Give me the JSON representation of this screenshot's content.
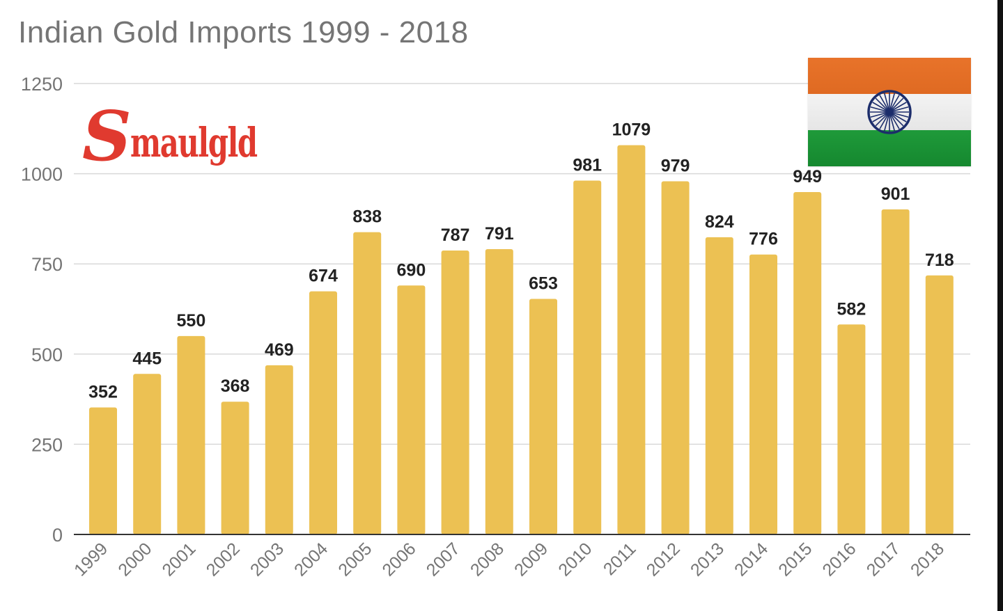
{
  "title": "Indian Gold Imports 1999 - 2018",
  "logo": {
    "initial": "S",
    "rest": "maulgld",
    "color": "#e03a2f"
  },
  "flag": {
    "name": "india-flag",
    "colors": {
      "saffron": "#e8732a",
      "white": "#eeeeee",
      "green": "#1f9a3a",
      "chakra": "#1c2d6b"
    }
  },
  "chart_data": {
    "type": "bar",
    "title": "Indian Gold Imports 1999 - 2018",
    "xlabel": "",
    "ylabel": "",
    "categories": [
      "1999",
      "2000",
      "2001",
      "2002",
      "2003",
      "2004",
      "2005",
      "2006",
      "2007",
      "2008",
      "2009",
      "2010",
      "2011",
      "2012",
      "2013",
      "2014",
      "2015",
      "2016",
      "2017",
      "2018"
    ],
    "values": [
      352,
      445,
      550,
      368,
      469,
      674,
      838,
      690,
      787,
      791,
      653,
      981,
      1079,
      979,
      824,
      776,
      949,
      582,
      901,
      718
    ],
    "ylim": [
      0,
      1250
    ],
    "yticks": [
      0,
      250,
      500,
      750,
      1000,
      1250
    ],
    "grid": true,
    "legend": "none",
    "bar_color": "#ecc153"
  }
}
